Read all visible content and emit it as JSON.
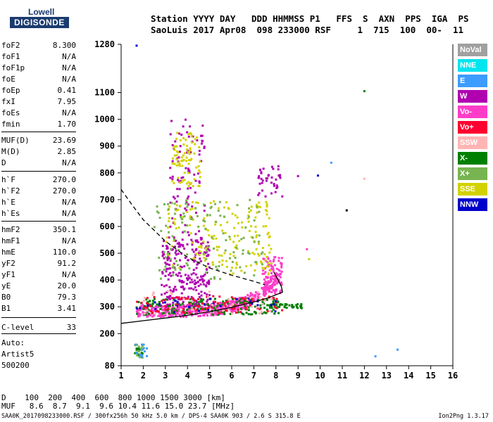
{
  "logo": {
    "line1": "Lowell",
    "line2": "DIGISONDE"
  },
  "header": {
    "line1": "Station YYYY DAY   DDD HHMMSS P1   FFS  S  AXN  PPS  IGA  PS",
    "line2": "SaoLuis 2017 Apr08  098 233000 RSF     1  715  100  00-  11"
  },
  "params": [
    {
      "name": "foF2",
      "value": "8.300"
    },
    {
      "name": "foF1",
      "value": "N/A"
    },
    {
      "name": "foF1p",
      "value": "N/A"
    },
    {
      "name": "foE",
      "value": "N/A"
    },
    {
      "name": "foEp",
      "value": "0.41"
    },
    {
      "name": "fxI",
      "value": "7.95"
    },
    {
      "name": "foEs",
      "value": "N/A"
    },
    {
      "name": "fmin",
      "value": "1.70"
    },
    {
      "name": "MUF(D)",
      "value": "23.69"
    },
    {
      "name": "M(D)",
      "value": "2.85"
    },
    {
      "name": "D",
      "value": "N/A"
    },
    {
      "name": "h`F",
      "value": "270.0"
    },
    {
      "name": "h`F2",
      "value": "270.0"
    },
    {
      "name": "h`E",
      "value": "N/A"
    },
    {
      "name": "h`Es",
      "value": "N/A"
    },
    {
      "name": "hmF2",
      "value": "350.1"
    },
    {
      "name": "hmF1",
      "value": "N/A"
    },
    {
      "name": "hmE",
      "value": "110.0"
    },
    {
      "name": "yF2",
      "value": "91.2"
    },
    {
      "name": "yF1",
      "value": "N/A"
    },
    {
      "name": "yE",
      "value": "20.0"
    },
    {
      "name": "B0",
      "value": "79.3"
    },
    {
      "name": "B1",
      "value": "3.41"
    },
    {
      "name": "C-level",
      "value": "33"
    }
  ],
  "auto": {
    "line1": "Auto:",
    "line2": "Artist5",
    "line3": "500200"
  },
  "legend": [
    {
      "label": "NoVal",
      "color": "#a0a0a0"
    },
    {
      "label": "NNE",
      "color": "#00e5ee"
    },
    {
      "label": "E",
      "color": "#3d9cff"
    },
    {
      "label": "W",
      "color": "#b000b0"
    },
    {
      "label": "Vo-",
      "color": "#ff3cc8"
    },
    {
      "label": "Vo+",
      "color": "#ff0030"
    },
    {
      "label": "SSW",
      "color": "#ffb4b4"
    },
    {
      "label": "X-",
      "color": "#008000"
    },
    {
      "label": "X+",
      "color": "#78b450"
    },
    {
      "label": "SSE",
      "color": "#d2d200"
    },
    {
      "label": "NNW",
      "color": "#0000cc"
    }
  ],
  "muf_table": {
    "d_line": "D    100  200  400  600  800 1000 1500 3000 [km]",
    "muf_line": "MUF   8.6  8.7  9.1  9.6 10.4 11.6 15.0 23.7 [MHz]"
  },
  "footer": "SAA0K_2017098233000.RSF / 300fx256h 50 kHz 5.0 km / DPS-4 SAA0K 903 / 2.6 S 315.8 E",
  "version": "Ion2Png 1.3.17",
  "chart_data": {
    "type": "scatter",
    "title": "",
    "xlabel": "",
    "ylabel": "",
    "xlim": [
      1,
      16
    ],
    "ylim": [
      80,
      1280
    ],
    "x_ticks": [
      1,
      2,
      3,
      4,
      5,
      6,
      7,
      8,
      9,
      10,
      11,
      12,
      13,
      14,
      15,
      16
    ],
    "y_ticks": [
      80,
      200,
      300,
      400,
      500,
      600,
      700,
      800,
      900,
      1000,
      1100,
      1280
    ],
    "grid": false,
    "legend_placement": "right",
    "series": [
      {
        "color": "#ff3cc8",
        "clusters": [
          {
            "x": [
              1.7,
              8.2
            ],
            "y": [
              265,
              340
            ],
            "n": 520,
            "trend": [
              1.7,
              280,
              8.2,
              420
            ]
          },
          {
            "x": [
              7.4,
              8.3
            ],
            "y": [
              350,
              490
            ],
            "n": 90
          }
        ]
      },
      {
        "color": "#b000b0",
        "clusters": [
          {
            "x": [
              2.8,
              5.0
            ],
            "y": [
              300,
              560
            ],
            "n": 260
          },
          {
            "x": [
              3.2,
              4.8
            ],
            "y": [
              560,
              1000
            ],
            "n": 90
          },
          {
            "x": [
              7.2,
              8.3
            ],
            "y": [
              700,
              830
            ],
            "n": 40
          }
        ]
      },
      {
        "color": "#008000",
        "clusters": [
          {
            "x": [
              1.7,
              8.2
            ],
            "y": [
              270,
              330
            ],
            "n": 160
          },
          {
            "x": [
              7.6,
              9.2
            ],
            "y": [
              295,
              310
            ],
            "n": 40
          },
          {
            "x": [
              1.6,
              2.0
            ],
            "y": [
              115,
              145
            ],
            "n": 12
          }
        ]
      },
      {
        "color": "#d2d200",
        "clusters": [
          {
            "x": [
              3.0,
              7.8
            ],
            "y": [
              420,
              700
            ],
            "n": 180
          },
          {
            "x": [
              3.3,
              4.6
            ],
            "y": [
              750,
              950
            ],
            "n": 80
          }
        ]
      },
      {
        "color": "#78b450",
        "clusters": [
          {
            "x": [
              2.5,
              7.5
            ],
            "y": [
              400,
              700
            ],
            "n": 120
          },
          {
            "x": [
              1.6,
              2.2
            ],
            "y": [
              110,
              160
            ],
            "n": 15
          }
        ]
      },
      {
        "color": "#ff0030",
        "clusters": [
          {
            "x": [
              1.7,
              8.3
            ],
            "y": [
              275,
              340
            ],
            "n": 90
          }
        ]
      },
      {
        "color": "#3d9cff",
        "clusters": [
          {
            "x": [
              1.6,
              2.2
            ],
            "y": [
              110,
              160
            ],
            "n": 14
          }
        ]
      },
      {
        "color": "#0000cc",
        "clusters": [
          {
            "x": [
              1.7,
              8.0
            ],
            "y": [
              280,
              330
            ],
            "n": 30
          }
        ]
      },
      {
        "color": "#ffb4b4",
        "clusters": [
          {
            "x": [
              1.7,
              8.0
            ],
            "y": [
              270,
              360
            ],
            "n": 40
          }
        ]
      }
    ],
    "isolated_points": [
      {
        "x": 1.7,
        "y": 1275,
        "color": "#0000cc"
      },
      {
        "x": 12.0,
        "y": 1105,
        "color": "#008000"
      },
      {
        "x": 10.5,
        "y": 838,
        "color": "#3d9cff"
      },
      {
        "x": 9.9,
        "y": 790,
        "color": "#0000cc"
      },
      {
        "x": 9.0,
        "y": 788,
        "color": "#b000b0"
      },
      {
        "x": 12.0,
        "y": 778,
        "color": "#ffb4b4"
      },
      {
        "x": 11.2,
        "y": 660,
        "color": "#000000"
      },
      {
        "x": 13.5,
        "y": 140,
        "color": "#3d9cff"
      },
      {
        "x": 12.5,
        "y": 115,
        "color": "#3d9cff"
      },
      {
        "x": 9.5,
        "y": 478,
        "color": "#d2d200"
      },
      {
        "x": 9.4,
        "y": 515,
        "color": "#ff3cc8"
      }
    ],
    "curves": [
      {
        "name": "profile",
        "style": "solid",
        "points": [
          [
            1.0,
            238
          ],
          [
            2,
            248
          ],
          [
            3,
            258
          ],
          [
            4,
            268
          ],
          [
            5,
            282
          ],
          [
            6,
            298
          ],
          [
            7,
            318
          ],
          [
            7.6,
            332
          ],
          [
            8.0,
            345
          ],
          [
            8.3,
            355
          ],
          [
            8.25,
            375
          ],
          [
            8.1,
            400
          ],
          [
            7.9,
            430
          ]
        ]
      },
      {
        "name": "model",
        "style": "dashed",
        "points": [
          [
            1.0,
            738
          ],
          [
            1.5,
            680
          ],
          [
            2,
            625
          ],
          [
            3,
            545
          ],
          [
            4,
            485
          ],
          [
            5,
            445
          ],
          [
            6,
            418
          ],
          [
            7,
            395
          ],
          [
            7.5,
            382
          ]
        ]
      }
    ]
  }
}
